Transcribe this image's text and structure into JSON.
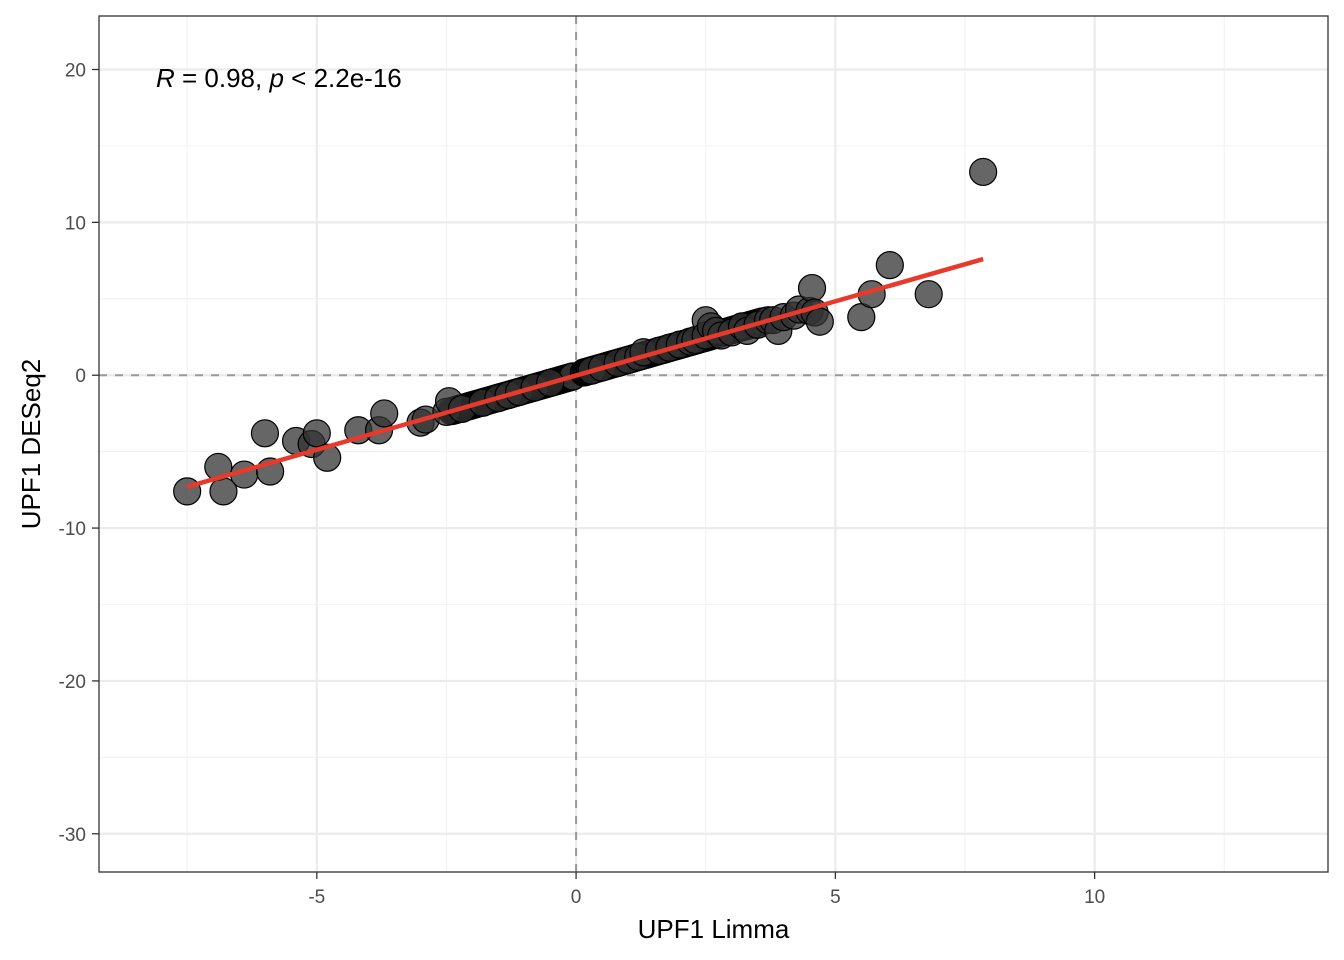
{
  "colors": {
    "point_fill": "#333333",
    "point_stroke": "#000000",
    "regression_line": "#e8392a",
    "reference_lines": "#999999",
    "grid_major": "#ebebeb",
    "grid_minor": "#f3f3f3",
    "panel_border": "#333333"
  },
  "chart_data": {
    "type": "scatter",
    "xlabel": "UPF1 Limma",
    "ylabel": "UPF1 DESeq2",
    "xlim": [
      -9.2,
      14.5
    ],
    "ylim": [
      -32.5,
      23.5
    ],
    "x_ticks": [
      -5,
      0,
      5,
      10
    ],
    "x_tick_labels": [
      "-5",
      "0",
      "5",
      "10"
    ],
    "y_ticks": [
      -30,
      -20,
      -10,
      0,
      10,
      20
    ],
    "y_tick_labels": [
      "-30",
      "-20",
      "-10",
      "0",
      "10",
      "20"
    ],
    "x_minor_ticks": [
      -7.5,
      -2.5,
      2.5,
      7.5,
      12.5
    ],
    "y_minor_ticks": [
      -25,
      -15,
      -5,
      5,
      15
    ],
    "grid": true,
    "reference_lines": {
      "x": 0,
      "y": 0,
      "style": "dashed"
    },
    "annotation": {
      "R_symbol": "R",
      "R_text": " = 0.98, ",
      "p_symbol": "p",
      "p_text": " < 2.2e-16"
    },
    "regression": {
      "x": [
        -7.5,
        7.85
      ],
      "y": [
        -7.3,
        7.6
      ]
    },
    "points": {
      "x": [
        -7.5,
        -6.9,
        -6.8,
        -6.4,
        -6.0,
        -5.9,
        -5.4,
        -5.1,
        -5.0,
        -4.8,
        -4.2,
        -3.8,
        -3.7,
        -3.0,
        -2.9,
        -2.5,
        -2.45,
        -2.2,
        -1.8,
        -1.5,
        -1.3,
        -1.1,
        -0.8,
        -0.5,
        0.3,
        0.5,
        0.8,
        1.0,
        1.2,
        1.3,
        1.6,
        1.8,
        2.0,
        2.2,
        2.3,
        2.5,
        2.5,
        2.6,
        2.7,
        2.8,
        3.0,
        3.2,
        3.3,
        3.5,
        3.7,
        3.8,
        3.9,
        4.0,
        4.2,
        4.3,
        4.5,
        4.55,
        4.6,
        4.7,
        5.5,
        5.7,
        6.05,
        6.8,
        7.85
      ],
      "y": [
        -7.6,
        -6.0,
        -7.6,
        -6.5,
        -3.8,
        -6.3,
        -4.3,
        -4.5,
        -3.8,
        -5.4,
        -3.6,
        -3.6,
        -2.5,
        -3.1,
        -2.9,
        -2.4,
        -1.7,
        -2.2,
        -1.8,
        -1.5,
        -1.3,
        -1.1,
        -0.8,
        -0.5,
        0.3,
        0.5,
        0.8,
        1.0,
        1.2,
        1.5,
        1.6,
        1.8,
        2.0,
        2.2,
        2.3,
        3.6,
        2.6,
        3.2,
        2.9,
        2.6,
        2.8,
        3.2,
        2.9,
        3.3,
        3.6,
        3.6,
        2.9,
        3.8,
        3.9,
        4.3,
        4.2,
        5.7,
        4.1,
        3.5,
        3.8,
        5.3,
        7.2,
        5.3,
        13.3
      ]
    }
  }
}
